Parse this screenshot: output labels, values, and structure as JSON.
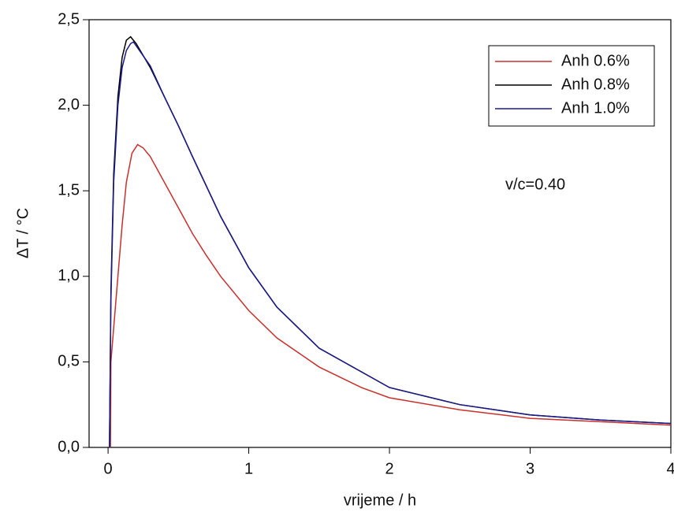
{
  "chart_data": {
    "type": "line",
    "xlabel": "vrijeme / h",
    "ylabel": "ΔT / °C",
    "annotation": "v/c=0.40",
    "xlim": [
      -0.135,
      4
    ],
    "xticks": [
      0,
      1,
      2,
      3,
      4
    ],
    "ylim": [
      0,
      2.5
    ],
    "yticks": [
      {
        "value": 0,
        "label": "0,0"
      },
      {
        "value": 0.5,
        "label": "0,5"
      },
      {
        "value": 1,
        "label": "1,0"
      },
      {
        "value": 1.5,
        "label": "1,5"
      },
      {
        "value": 2,
        "label": "2,0"
      },
      {
        "value": 2.5,
        "label": "2,5"
      }
    ],
    "legend": "upper right",
    "series": [
      {
        "name": "Anh 0.6%",
        "color": "#c8302c",
        "x": [
          0.017,
          0.02,
          0.03,
          0.05,
          0.08,
          0.1,
          0.13,
          0.17,
          0.21,
          0.25,
          0.3,
          0.4,
          0.5,
          0.6,
          0.7,
          0.8,
          1.0,
          1.2,
          1.5,
          1.8,
          2.0,
          2.5,
          3.0,
          3.5,
          4.0
        ],
        "values": [
          0,
          0.5,
          0.6,
          0.8,
          1.1,
          1.3,
          1.55,
          1.72,
          1.77,
          1.75,
          1.7,
          1.55,
          1.4,
          1.25,
          1.12,
          1.0,
          0.8,
          0.64,
          0.47,
          0.35,
          0.29,
          0.22,
          0.17,
          0.15,
          0.13
        ]
      },
      {
        "name": "Anh 0.8%",
        "color": "#000000",
        "x": [
          0.01,
          0.02,
          0.04,
          0.07,
          0.1,
          0.13,
          0.16,
          0.2,
          0.3,
          0.4,
          0.5,
          0.6,
          0.8,
          1.0,
          1.2,
          1.5,
          2.0,
          2.5,
          3.0,
          3.5,
          4.0
        ],
        "values": [
          0,
          0.9,
          1.6,
          2.05,
          2.28,
          2.38,
          2.4,
          2.36,
          2.22,
          2.05,
          1.88,
          1.7,
          1.35,
          1.05,
          0.82,
          0.58,
          0.35,
          0.25,
          0.19,
          0.16,
          0.14
        ]
      },
      {
        "name": "Anh 1.0%",
        "color": "#1a1a8c",
        "x": [
          0.01,
          0.02,
          0.04,
          0.07,
          0.1,
          0.13,
          0.16,
          0.18,
          0.3,
          0.4,
          0.5,
          0.6,
          0.8,
          1.0,
          1.2,
          1.5,
          2.0,
          2.5,
          3.0,
          3.5,
          4.0
        ],
        "values": [
          0,
          0.85,
          1.55,
          2.0,
          2.22,
          2.32,
          2.36,
          2.37,
          2.23,
          2.05,
          1.88,
          1.7,
          1.35,
          1.05,
          0.82,
          0.58,
          0.35,
          0.25,
          0.19,
          0.16,
          0.14
        ]
      }
    ]
  }
}
